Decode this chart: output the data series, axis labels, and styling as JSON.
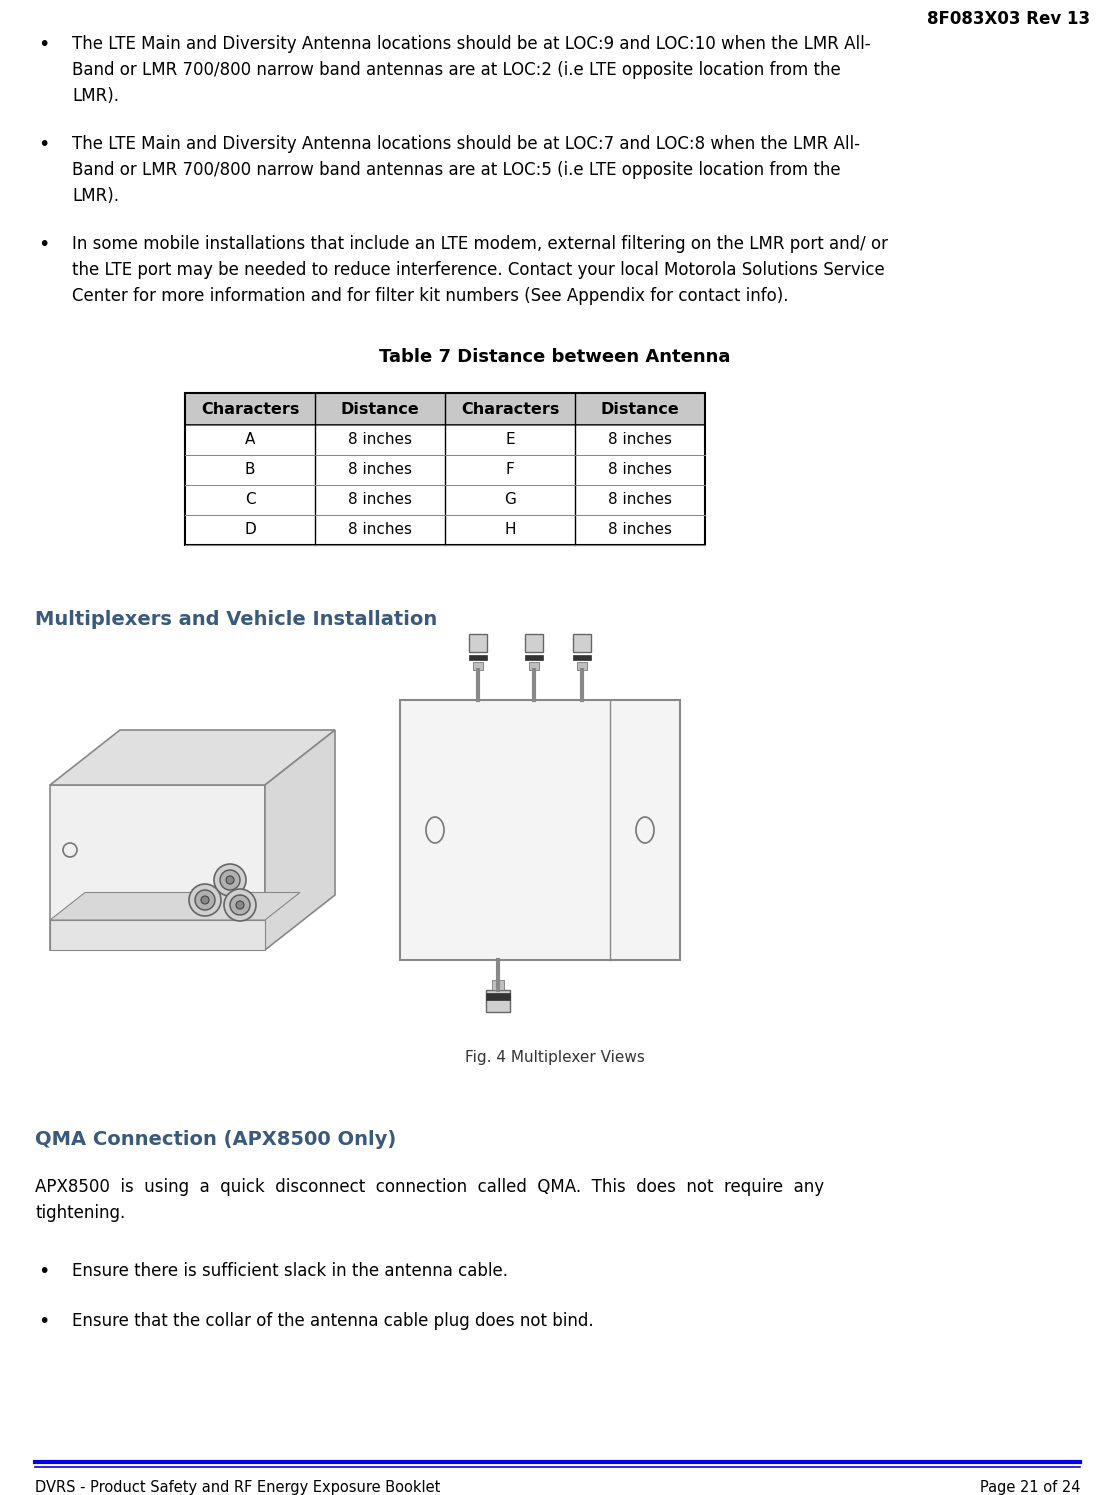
{
  "header_right": "8F083X03 Rev 13",
  "bullet1_line1": "The LTE Main and Diversity Antenna locations should be at LOC:9 and LOC:10 when the LMR All-",
  "bullet1_line2": "Band or LMR 700/800 narrow band antennas are at LOC:2 (i.e LTE opposite location from the",
  "bullet1_line3": "LMR).",
  "bullet2_line1": "The LTE Main and Diversity Antenna locations should be at LOC:7 and LOC:8 when the LMR All-",
  "bullet2_line2": "Band or LMR 700/800 narrow band antennas are at LOC:5 (i.e LTE opposite location from the",
  "bullet2_line3": "LMR).",
  "bullet3_line1": "In some mobile installations that include an LTE modem, external filtering on the LMR port and/ or",
  "bullet3_line2": "the LTE port may be needed to reduce interference. Contact your local Motorola Solutions Service",
  "bullet3_line3": "Center for more information and for filter kit numbers (See Appendix for contact info).",
  "table_title": "Table 7 Distance between Antenna",
  "table_headers": [
    "Characters",
    "Distance",
    "Characters",
    "Distance"
  ],
  "table_rows": [
    [
      "A",
      "8 inches",
      "E",
      "8 inches"
    ],
    [
      "B",
      "8 inches",
      "F",
      "8 inches"
    ],
    [
      "C",
      "8 inches",
      "G",
      "8 inches"
    ],
    [
      "D",
      "8 inches",
      "H",
      "8 inches"
    ]
  ],
  "section_title": "Multiplexers and Vehicle Installation",
  "fig_caption": "Fig. 4 Multiplexer Views",
  "section2_title": "QMA Connection (APX8500 Only)",
  "qma_line1": "APX8500  is  using  a  quick  disconnect  connection  called  QMA.  This  does  not  require  any",
  "qma_line2": "tightening.",
  "bullet4": "Ensure there is sufficient slack in the antenna cable.",
  "bullet5": "Ensure that the collar of the antenna cable plug does not bind.",
  "footer_left": "DVRS - Product Safety and RF Energy Exposure Booklet",
  "footer_right": "Page 21 of 24",
  "bg_color": "#ffffff",
  "text_color": "#000000",
  "blue_color": "#3a5a7c",
  "header_color": "#000000",
  "footer_line_color": "#0000ee"
}
